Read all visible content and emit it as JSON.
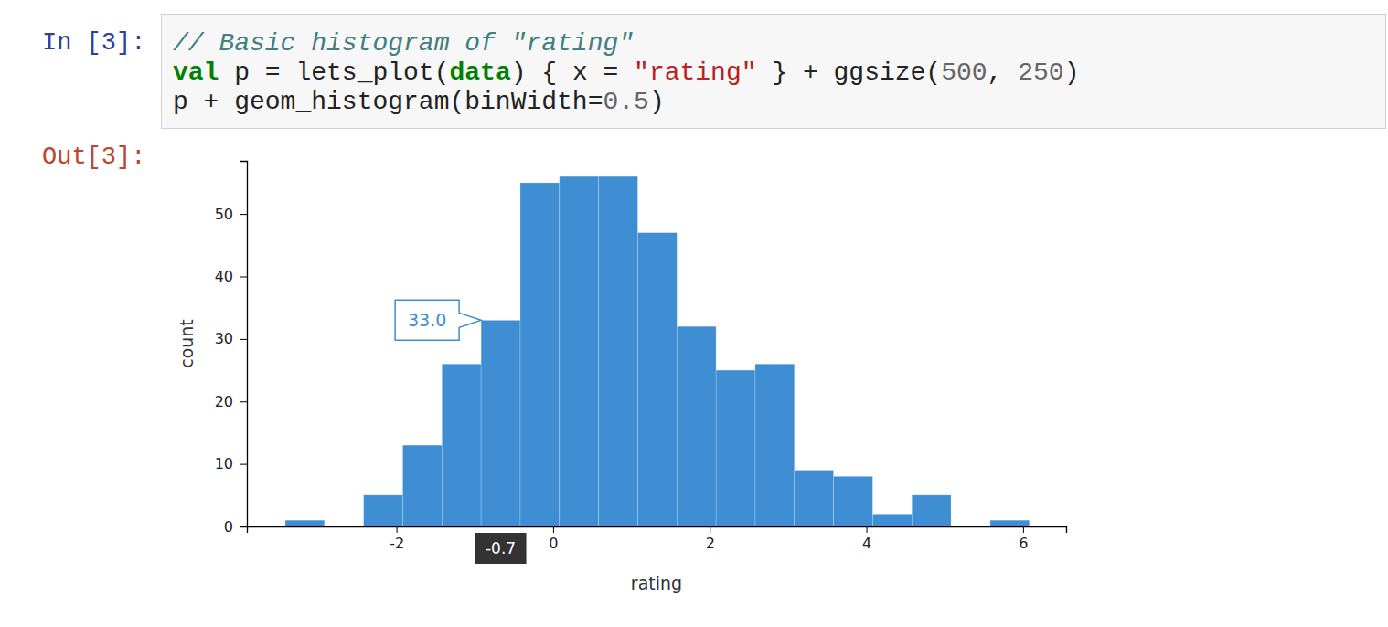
{
  "notebook": {
    "input_prompt": "In [3]:",
    "output_prompt": "Out[3]:",
    "code": [
      [
        {
          "text": "// Basic histogram of \"rating\"",
          "kind": "comment"
        }
      ],
      [
        {
          "text": "val",
          "kind": "keyword"
        },
        {
          "text": " p = lets_plot(",
          "kind": "plain"
        },
        {
          "text": "data",
          "kind": "keyword"
        },
        {
          "text": ") { x = ",
          "kind": "plain"
        },
        {
          "text": "\"rating\"",
          "kind": "string"
        },
        {
          "text": " } + ggsize(",
          "kind": "plain"
        },
        {
          "text": "500",
          "kind": "number"
        },
        {
          "text": ", ",
          "kind": "plain"
        },
        {
          "text": "250",
          "kind": "number"
        },
        {
          "text": ")",
          "kind": "plain"
        }
      ],
      [
        {
          "text": "p + geom_histogram(binWidth=",
          "kind": "plain"
        },
        {
          "text": "0.5",
          "kind": "number"
        },
        {
          "text": ")",
          "kind": "plain"
        }
      ]
    ]
  },
  "chart_data": {
    "type": "histogram",
    "x_label": "rating",
    "y_label": "count",
    "bins": [
      -3.42,
      -2.92,
      -2.42,
      -1.92,
      -1.42,
      -0.92,
      -0.42,
      0.08,
      0.58,
      1.08,
      1.58,
      2.08,
      2.58,
      3.08,
      3.58,
      4.08,
      4.58,
      5.08,
      5.58,
      6.08
    ],
    "counts": [
      1,
      0,
      5,
      13,
      26,
      33,
      55,
      56,
      56,
      47,
      32,
      25,
      26,
      9,
      8,
      2,
      5,
      0,
      1
    ],
    "color": "#3f8ed4",
    "xlim": [
      -3.91,
      6.55
    ],
    "ylim": [
      0,
      58.5
    ],
    "xticks": [
      -2,
      0,
      2,
      4,
      6
    ],
    "yticks": [
      0,
      10,
      20,
      30,
      40,
      50
    ],
    "annotations": [
      {
        "text": "33.0",
        "x": -0.67,
        "y": 33
      },
      {
        "text": "-0.7",
        "x": -0.67
      }
    ]
  }
}
